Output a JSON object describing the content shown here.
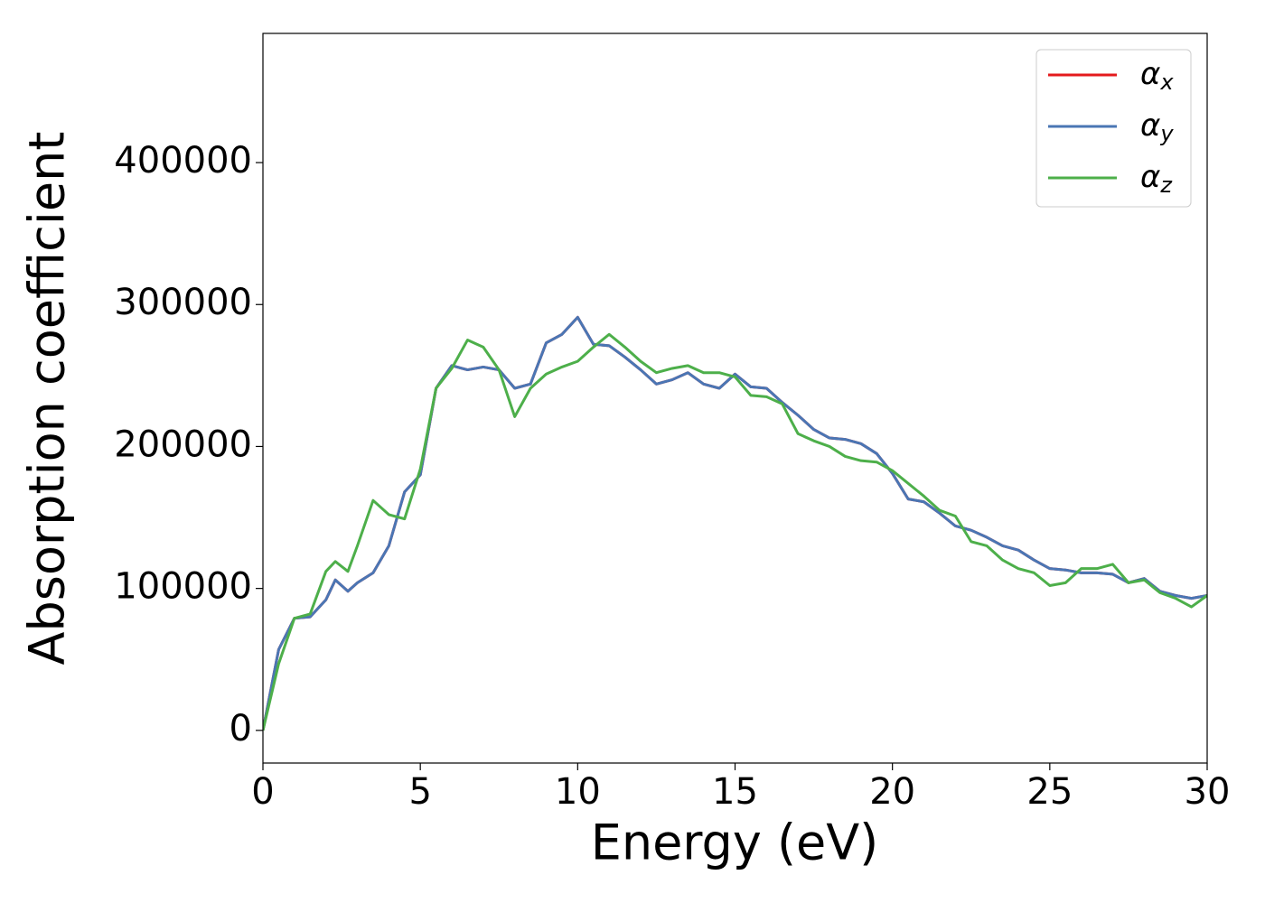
{
  "chart_data": {
    "type": "line",
    "x_label": "Energy (eV)",
    "y_label": "Absorption coefficient",
    "x": [
      0,
      0.5,
      1,
      1.5,
      2,
      2.3,
      2.7,
      3,
      3.5,
      4,
      4.5,
      5,
      5.5,
      6,
      6.5,
      7,
      7.5,
      8,
      8.5,
      9,
      9.5,
      10,
      10.5,
      11,
      11.5,
      12,
      12.5,
      13,
      13.5,
      14,
      14.5,
      15,
      15.5,
      16,
      16.5,
      17,
      17.5,
      18,
      18.5,
      19,
      19.5,
      20,
      20.5,
      21,
      21.5,
      22,
      22.5,
      23,
      23.5,
      24,
      24.5,
      25,
      25.5,
      26,
      26.5,
      27,
      27.5,
      28,
      28.5,
      29,
      29.5,
      30
    ],
    "series": [
      {
        "name": "αx",
        "color": "#e41a1c",
        "values": [
          0,
          57000,
          79000,
          80000,
          92000,
          106000,
          98000,
          104000,
          111000,
          130000,
          168000,
          180000,
          241000,
          257000,
          254000,
          256000,
          254000,
          241000,
          244000,
          273000,
          279000,
          291000,
          272000,
          271000,
          263000,
          254000,
          244000,
          247000,
          252000,
          244000,
          241000,
          251000,
          242000,
          241000,
          231000,
          222000,
          212000,
          206000,
          205000,
          202000,
          195000,
          181000,
          163000,
          161000,
          153000,
          144000,
          141000,
          136000,
          130000,
          127000,
          120000,
          114000,
          113000,
          111000,
          111000,
          110000,
          104000,
          107000,
          98000,
          95000,
          93000,
          95000
        ]
      },
      {
        "name": "αy",
        "color": "#4a76b4",
        "values": [
          0,
          57000,
          79000,
          80000,
          92000,
          106000,
          98000,
          104000,
          111000,
          130000,
          168000,
          180000,
          241000,
          257000,
          254000,
          256000,
          254000,
          241000,
          244000,
          273000,
          279000,
          291000,
          272000,
          271000,
          263000,
          254000,
          244000,
          247000,
          252000,
          244000,
          241000,
          251000,
          242000,
          241000,
          231000,
          222000,
          212000,
          206000,
          205000,
          202000,
          195000,
          181000,
          163000,
          161000,
          153000,
          144000,
          141000,
          136000,
          130000,
          127000,
          120000,
          114000,
          113000,
          111000,
          111000,
          110000,
          104000,
          107000,
          98000,
          95000,
          93000,
          95000
        ]
      },
      {
        "name": "αz",
        "color": "#4daf4a",
        "values": [
          0,
          47000,
          79000,
          82000,
          112000,
          119000,
          112000,
          130000,
          162000,
          152000,
          149000,
          184000,
          241000,
          255000,
          275000,
          270000,
          254000,
          221000,
          241000,
          251000,
          256000,
          260000,
          270000,
          279000,
          270000,
          260000,
          252000,
          255000,
          257000,
          252000,
          252000,
          249000,
          236000,
          235000,
          230000,
          209000,
          204000,
          200000,
          193000,
          190000,
          189000,
          183000,
          174000,
          165000,
          155000,
          151000,
          133000,
          130000,
          120000,
          114000,
          111000,
          102000,
          104000,
          114000,
          114000,
          117000,
          104000,
          106000,
          97000,
          93000,
          87000,
          95000
        ]
      }
    ],
    "xlim": [
      0,
      30
    ],
    "xticks": [
      0,
      5,
      10,
      15,
      20,
      25,
      30
    ],
    "ylim": [
      -23000,
      491000
    ],
    "yticks": [
      0,
      100000,
      200000,
      300000,
      400000
    ],
    "legend": "upper right",
    "grid": false
  }
}
